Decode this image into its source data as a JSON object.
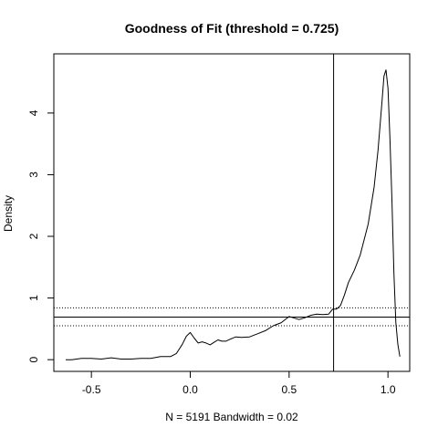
{
  "chart_data": {
    "type": "line",
    "title": "Goodness of Fit (threshold = 0.725)",
    "xlabel": "N = 5191   Bandwidth = 0.02",
    "ylabel": "Density",
    "xlim": [
      -0.69,
      1.11
    ],
    "ylim": [
      -0.19,
      4.96
    ],
    "x_ticks": [
      -0.5,
      0.0,
      0.5,
      1.0
    ],
    "x_tick_labels": [
      "-0.5",
      "0.0",
      "0.5",
      "1.0"
    ],
    "y_ticks": [
      0,
      1,
      2,
      3,
      4
    ],
    "y_tick_labels": [
      "0",
      "1",
      "2",
      "3",
      "4"
    ],
    "grid": false,
    "series": [
      {
        "x": [
          -0.63,
          -0.6,
          -0.55,
          -0.5,
          -0.45,
          -0.4,
          -0.35,
          -0.3,
          -0.25,
          -0.2,
          -0.15,
          -0.1,
          -0.07,
          -0.04,
          -0.02,
          0.0,
          0.02,
          0.04,
          0.06,
          0.08,
          0.1,
          0.12,
          0.14,
          0.16,
          0.18,
          0.2,
          0.23,
          0.26,
          0.3,
          0.34,
          0.38,
          0.42,
          0.46,
          0.5,
          0.52,
          0.55,
          0.58,
          0.61,
          0.64,
          0.67,
          0.7,
          0.72,
          0.74,
          0.76,
          0.78,
          0.8,
          0.83,
          0.86,
          0.9,
          0.93,
          0.95,
          0.97,
          0.98,
          0.99,
          1.0,
          1.01,
          1.02,
          1.03,
          1.04,
          1.05,
          1.06
        ],
        "y": [
          0.0,
          0.0,
          0.02,
          0.02,
          0.01,
          0.03,
          0.01,
          0.01,
          0.02,
          0.02,
          0.05,
          0.05,
          0.1,
          0.25,
          0.38,
          0.44,
          0.35,
          0.27,
          0.29,
          0.27,
          0.24,
          0.28,
          0.32,
          0.3,
          0.3,
          0.33,
          0.37,
          0.36,
          0.37,
          0.42,
          0.47,
          0.55,
          0.6,
          0.7,
          0.68,
          0.65,
          0.68,
          0.72,
          0.74,
          0.73,
          0.74,
          0.82,
          0.82,
          0.88,
          1.05,
          1.25,
          1.45,
          1.7,
          2.2,
          2.8,
          3.4,
          4.2,
          4.6,
          4.7,
          4.4,
          3.6,
          2.6,
          1.4,
          0.6,
          0.25,
          0.05
        ]
      }
    ],
    "vline": 0.725,
    "hlines": [
      {
        "y": 0.69,
        "style": "solid"
      },
      {
        "y": 0.84,
        "style": "dotted"
      },
      {
        "y": 0.55,
        "style": "dotted"
      }
    ]
  }
}
